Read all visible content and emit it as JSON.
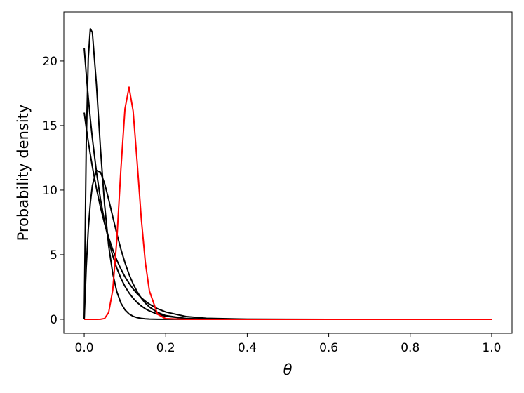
{
  "chart_data": {
    "type": "line",
    "xlabel": "θ",
    "ylabel": "Probability density",
    "x": [
      0,
      0.005,
      0.01,
      0.015,
      0.02,
      0.03,
      0.04,
      0.05,
      0.06,
      0.07,
      0.08,
      0.09,
      0.1,
      0.11,
      0.12,
      0.13,
      0.14,
      0.15,
      0.16,
      0.18,
      0.2,
      0.25,
      0.3,
      0.4,
      0.5,
      0.6,
      0.8,
      1.0
    ],
    "series": [
      {
        "color": "#000000",
        "values": [
          21,
          19.0,
          17.18,
          15.52,
          14.02,
          11.42,
          9.28,
          7.53,
          6.09,
          4.92,
          3.96,
          3.18,
          2.55,
          2.04,
          1.63,
          1.3,
          1.03,
          0.815,
          0.643,
          0.397,
          0.242,
          0.067,
          0.017,
          0.0008,
          0,
          0,
          0,
          0
        ]
      },
      {
        "color": "#000000",
        "values": [
          16,
          14.84,
          13.76,
          12.76,
          11.82,
          10.13,
          8.67,
          7.41,
          6.33,
          5.39,
          4.58,
          3.89,
          3.29,
          2.79,
          2.35,
          1.98,
          1.67,
          1.4,
          1.17,
          0.815,
          0.563,
          0.214,
          0.076,
          0.0075,
          0.0005,
          0,
          0,
          0
        ]
      },
      {
        "color": "#000000",
        "values": [
          0,
          13.62,
          20.23,
          22.5,
          22.22,
          18.2,
          13.18,
          8.87,
          5.7,
          3.54,
          2.14,
          1.26,
          0.73,
          0.415,
          0.233,
          0.129,
          0.07,
          0.038,
          0.02,
          0.0054,
          0.0014,
          0,
          0,
          0,
          0,
          0,
          0,
          0
        ]
      },
      {
        "color": "#000000",
        "values": [
          0,
          4.02,
          6.95,
          9.0,
          10.35,
          11.53,
          11.39,
          10.51,
          9.28,
          7.94,
          6.63,
          5.43,
          4.38,
          3.48,
          2.74,
          2.13,
          1.64,
          1.25,
          0.948,
          0.53,
          0.288,
          0.055,
          0.009,
          0,
          0,
          0,
          0,
          0
        ]
      },
      {
        "color": "#ff0000",
        "values": [
          0,
          0,
          0,
          0,
          0,
          0,
          0.003,
          0.062,
          0.52,
          2.26,
          6.15,
          11.62,
          16.3,
          17.97,
          16.13,
          12.14,
          7.82,
          4.4,
          2.19,
          0.39,
          0.048,
          0,
          0,
          0,
          0,
          0,
          0,
          0
        ]
      }
    ],
    "xlim": [
      -0.05,
      1.05
    ],
    "xticks": [
      {
        "value": 0,
        "label": "0.0"
      },
      0.2,
      0.4,
      0.6,
      0.8,
      {
        "value": 1,
        "label": "1.0"
      }
    ],
    "ylim": [
      -1.09,
      23.8
    ],
    "yticks": [
      0,
      5,
      10,
      15,
      20
    ],
    "grid": false
  }
}
